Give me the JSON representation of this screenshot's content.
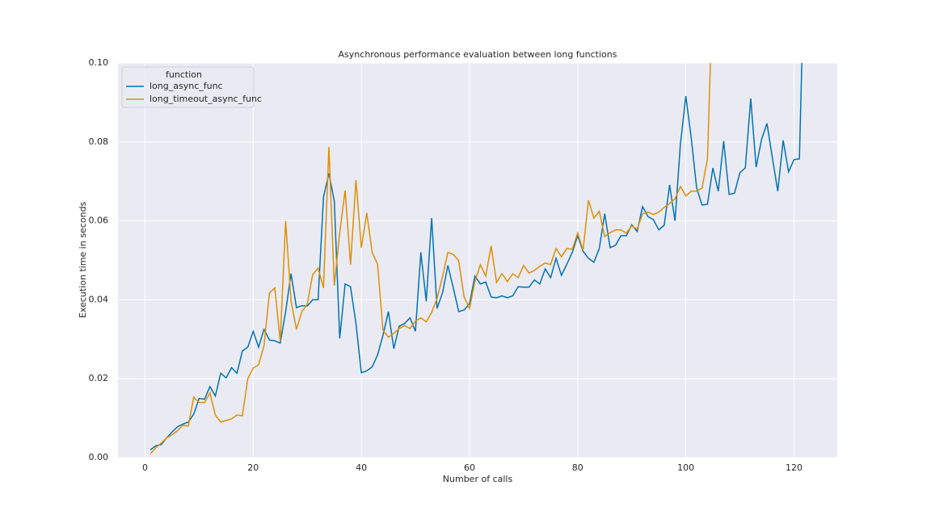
{
  "chart_data": {
    "type": "line",
    "title": "Asynchronous performance evaluation between long functions",
    "xlabel": "Number of calls",
    "ylabel": "Execution time in seconds",
    "legend_title": "function",
    "legend": "upper left",
    "grid": true,
    "xlim": [
      -5,
      128
    ],
    "ylim": [
      0,
      0.1
    ],
    "xticks": [
      0,
      20,
      40,
      60,
      80,
      100,
      120
    ],
    "yticks": [
      {
        "value": 0,
        "label": "0.00"
      },
      {
        "value": 0.02,
        "label": "0.02"
      },
      {
        "value": 0.04,
        "label": "0.04"
      },
      {
        "value": 0.06,
        "label": "0.06"
      },
      {
        "value": 0.08,
        "label": "0.08"
      },
      {
        "value": 0.1,
        "label": "0.10"
      }
    ],
    "series": [
      {
        "name": "long_async_func",
        "color": "#0173b2",
        "x": [
          1,
          2,
          3,
          4,
          5,
          6,
          7,
          8,
          9,
          10,
          11,
          12,
          13,
          14,
          15,
          16,
          17,
          18,
          19,
          20,
          21,
          22,
          23,
          24,
          25,
          26,
          27,
          28,
          29,
          30,
          31,
          32,
          33,
          34,
          35,
          36,
          37,
          38,
          39,
          40,
          41,
          42,
          43,
          44,
          45,
          46,
          47,
          48,
          49,
          50,
          51,
          52,
          53,
          54,
          55,
          56,
          57,
          58,
          59,
          60,
          61,
          62,
          63,
          64,
          65,
          66,
          67,
          68,
          69,
          70,
          71,
          72,
          73,
          74,
          75,
          76,
          77,
          78,
          79,
          80,
          81,
          82,
          83,
          84,
          85,
          86,
          87,
          88,
          89,
          90,
          91,
          92,
          93,
          94,
          95,
          96,
          97,
          98,
          99,
          100,
          101,
          102,
          103,
          104,
          105,
          106,
          107,
          108,
          109,
          110,
          111,
          112,
          113,
          114,
          115,
          116,
          117,
          118,
          119,
          120,
          121,
          122
        ],
        "values": [
          0.002,
          0.003,
          0.0033,
          0.005,
          0.0065,
          0.0078,
          0.0085,
          0.009,
          0.011,
          0.015,
          0.0148,
          0.018,
          0.0156,
          0.0214,
          0.0202,
          0.0228,
          0.0214,
          0.027,
          0.028,
          0.032,
          0.028,
          0.0325,
          0.0298,
          0.0296,
          0.029,
          0.037,
          0.0466,
          0.038,
          0.0385,
          0.0384,
          0.04,
          0.04,
          0.066,
          0.072,
          0.065,
          0.0302,
          0.044,
          0.0433,
          0.034,
          0.0215,
          0.022,
          0.023,
          0.026,
          0.031,
          0.037,
          0.0276,
          0.0333,
          0.034,
          0.0354,
          0.032,
          0.052,
          0.0396,
          0.0607,
          0.0378,
          0.0417,
          0.0487,
          0.043,
          0.037,
          0.0374,
          0.039,
          0.046,
          0.044,
          0.0445,
          0.0407,
          0.0405,
          0.041,
          0.0405,
          0.041,
          0.0433,
          0.0432,
          0.0432,
          0.045,
          0.044,
          0.0478,
          0.0456,
          0.0505,
          0.0462,
          0.049,
          0.052,
          0.0562,
          0.0523,
          0.0505,
          0.0495,
          0.053,
          0.0618,
          0.0532,
          0.0538,
          0.0562,
          0.0562,
          0.059,
          0.0573,
          0.0636,
          0.0611,
          0.0603,
          0.0577,
          0.0589,
          0.0691,
          0.06,
          0.0795,
          0.0916,
          0.081,
          0.0683,
          0.064,
          0.0642,
          0.0734,
          0.0675,
          0.0802,
          0.0667,
          0.067,
          0.0722,
          0.0734,
          0.091,
          0.0736,
          0.0806,
          0.0847,
          0.076,
          0.0675,
          0.0804,
          0.0724,
          0.0755,
          0.0757,
          0.13
        ]
      },
      {
        "name": "long_timeout_async_func",
        "color": "#de8f05",
        "x": [
          1,
          2,
          3,
          4,
          5,
          6,
          7,
          8,
          9,
          10,
          11,
          12,
          13,
          14,
          15,
          16,
          17,
          18,
          19,
          20,
          21,
          22,
          23,
          24,
          25,
          26,
          27,
          28,
          29,
          30,
          31,
          32,
          33,
          34,
          35,
          36,
          37,
          38,
          39,
          40,
          41,
          42,
          43,
          44,
          45,
          46,
          47,
          48,
          49,
          50,
          51,
          52,
          53,
          54,
          55,
          56,
          57,
          58,
          59,
          60,
          61,
          62,
          63,
          64,
          65,
          66,
          67,
          68,
          69,
          70,
          71,
          72,
          73,
          74,
          75,
          76,
          77,
          78,
          79,
          80,
          81,
          82,
          83,
          84,
          85,
          86,
          87,
          88,
          89,
          90,
          91,
          92,
          93,
          94,
          95,
          96,
          97,
          98,
          99,
          100,
          101,
          102,
          103,
          104,
          105
        ],
        "values": [
          0.001,
          0.0025,
          0.0037,
          0.005,
          0.0058,
          0.0068,
          0.0082,
          0.008,
          0.0153,
          0.014,
          0.0139,
          0.0164,
          0.0108,
          0.009,
          0.0094,
          0.0098,
          0.0108,
          0.0106,
          0.02,
          0.0227,
          0.0235,
          0.0284,
          0.0417,
          0.043,
          0.0295,
          0.06,
          0.0397,
          0.0325,
          0.037,
          0.0389,
          0.0464,
          0.048,
          0.043,
          0.0787,
          0.0436,
          0.057,
          0.0677,
          0.0489,
          0.0703,
          0.0532,
          0.062,
          0.052,
          0.049,
          0.0323,
          0.0305,
          0.0315,
          0.0327,
          0.0335,
          0.0327,
          0.0346,
          0.0354,
          0.0344,
          0.0368,
          0.0403,
          0.0458,
          0.052,
          0.0515,
          0.0499,
          0.0407,
          0.0378,
          0.0446,
          0.0489,
          0.046,
          0.0536,
          0.0444,
          0.0466,
          0.0446,
          0.0466,
          0.0456,
          0.0487,
          0.0468,
          0.0474,
          0.0485,
          0.0493,
          0.0489,
          0.053,
          0.0509,
          0.053,
          0.0528,
          0.0569,
          0.0526,
          0.0652,
          0.0607,
          0.0624,
          0.056,
          0.057,
          0.0577,
          0.0577,
          0.0569,
          0.0587,
          0.0579,
          0.0618,
          0.0622,
          0.0616,
          0.0622,
          0.0634,
          0.0644,
          0.0656,
          0.0687,
          0.0663,
          0.0675,
          0.0675,
          0.0683,
          0.0757,
          0.12
        ]
      }
    ]
  }
}
